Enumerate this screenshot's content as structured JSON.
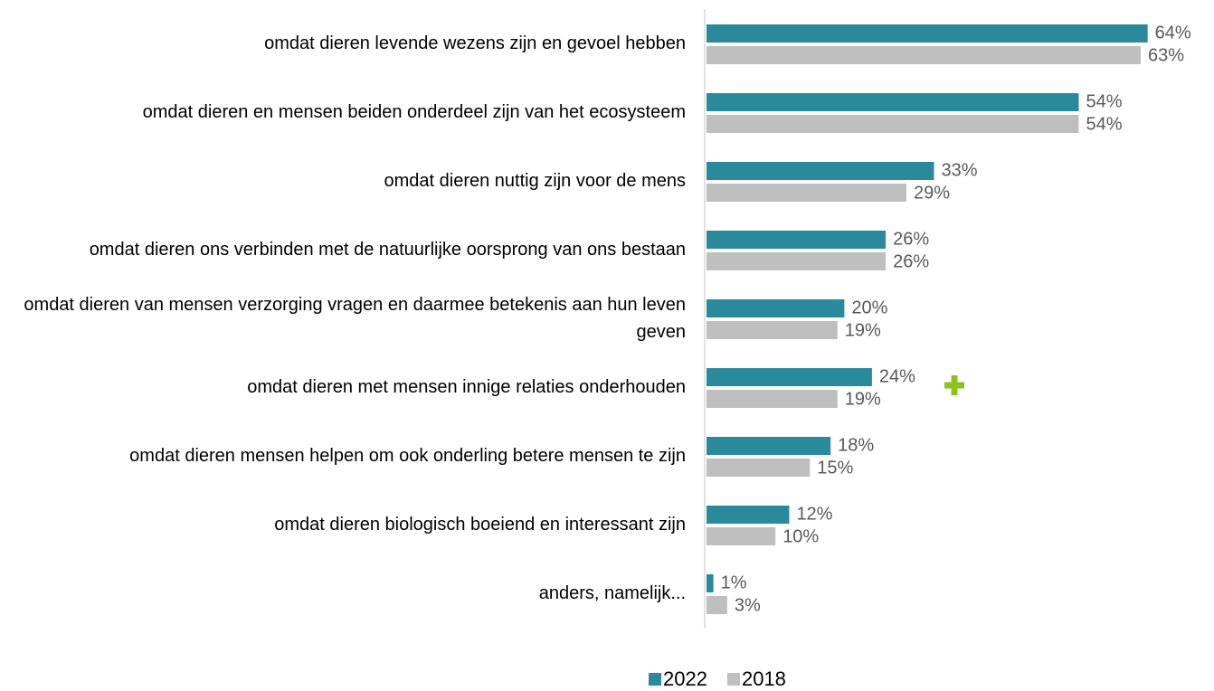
{
  "chart_data": {
    "type": "barh",
    "categories": [
      "omdat dieren levende wezens zijn en gevoel hebben",
      "omdat dieren en mensen beiden onderdeel zijn van het ecosysteem",
      "omdat dieren nuttig zijn voor de mens",
      "omdat dieren ons verbinden met de natuurlijke oorsprong van ons bestaan",
      "omdat dieren van mensen verzorging vragen en daarmee betekenis aan hun leven geven",
      "omdat dieren met mensen innige relaties onderhouden",
      "omdat dieren mensen helpen om ook onderling betere mensen te zijn",
      "omdat dieren biologisch boeiend en interessant zijn",
      "anders, namelijk..."
    ],
    "series": [
      {
        "name": "2022",
        "color": "#2a8a9c",
        "values": [
          64,
          54,
          33,
          26,
          20,
          24,
          18,
          12,
          1
        ],
        "value_labels": [
          "64%",
          "54%",
          "33%",
          "26%",
          "20%",
          "24%",
          "18%",
          "12%",
          "1%"
        ]
      },
      {
        "name": "2018",
        "color": "#bfbfbf",
        "values": [
          63,
          54,
          29,
          26,
          19,
          19,
          15,
          10,
          3
        ],
        "value_labels": [
          "63%",
          "54%",
          "29%",
          "26%",
          "19%",
          "19%",
          "15%",
          "10%",
          "3%"
        ]
      }
    ],
    "xlim": [
      0,
      70
    ],
    "legend": "bottom"
  }
}
